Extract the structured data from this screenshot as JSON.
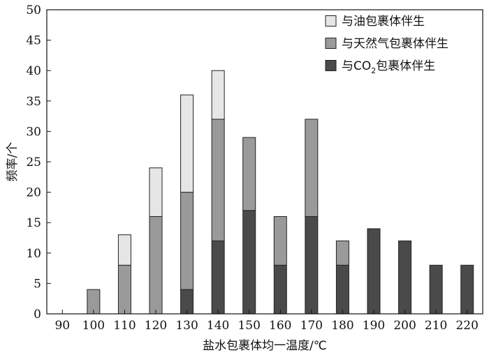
{
  "chart_data": {
    "type": "bar",
    "stacked": true,
    "categories": [
      "90",
      "100",
      "110",
      "120",
      "130",
      "140",
      "150",
      "160",
      "170",
      "180",
      "190",
      "200",
      "210",
      "220"
    ],
    "series": [
      {
        "name": "与CO2包裹体伴生",
        "color": "#4a4a4a",
        "values": [
          0,
          0,
          0,
          0,
          4,
          12,
          17,
          8,
          16,
          8,
          14,
          12,
          8,
          8
        ]
      },
      {
        "name": "与天然气包裹体伴生",
        "color": "#9a9a9a",
        "values": [
          0,
          4,
          8,
          16,
          16,
          20,
          12,
          8,
          16,
          4,
          0,
          0,
          0,
          0
        ]
      },
      {
        "name": "与油包裹体伴生",
        "color": "#e6e6e6",
        "values": [
          0,
          0,
          5,
          8,
          16,
          8,
          0,
          0,
          0,
          0,
          0,
          0,
          0,
          0
        ]
      }
    ],
    "legend": {
      "placement": "top-right",
      "entries": [
        {
          "series": "与油包裹体伴生",
          "text_before": "与油包裹体伴生",
          "sub": "",
          "text_after": ""
        },
        {
          "series": "与天然气包裹体伴生",
          "text_before": "与天然气包裹体伴生",
          "sub": "",
          "text_after": ""
        },
        {
          "series": "与CO2包裹体伴生",
          "text_before": "与CO",
          "sub": "2",
          "text_after": "包裹体伴生"
        }
      ]
    },
    "xlabel": "盐水包裹体均一温度/℃",
    "ylabel": "频率/个",
    "ylim": [
      0,
      50
    ],
    "yticks": [
      0,
      5,
      10,
      15,
      20,
      25,
      30,
      35,
      40,
      45,
      50
    ],
    "grid": false,
    "bar_outline": "#222222"
  }
}
